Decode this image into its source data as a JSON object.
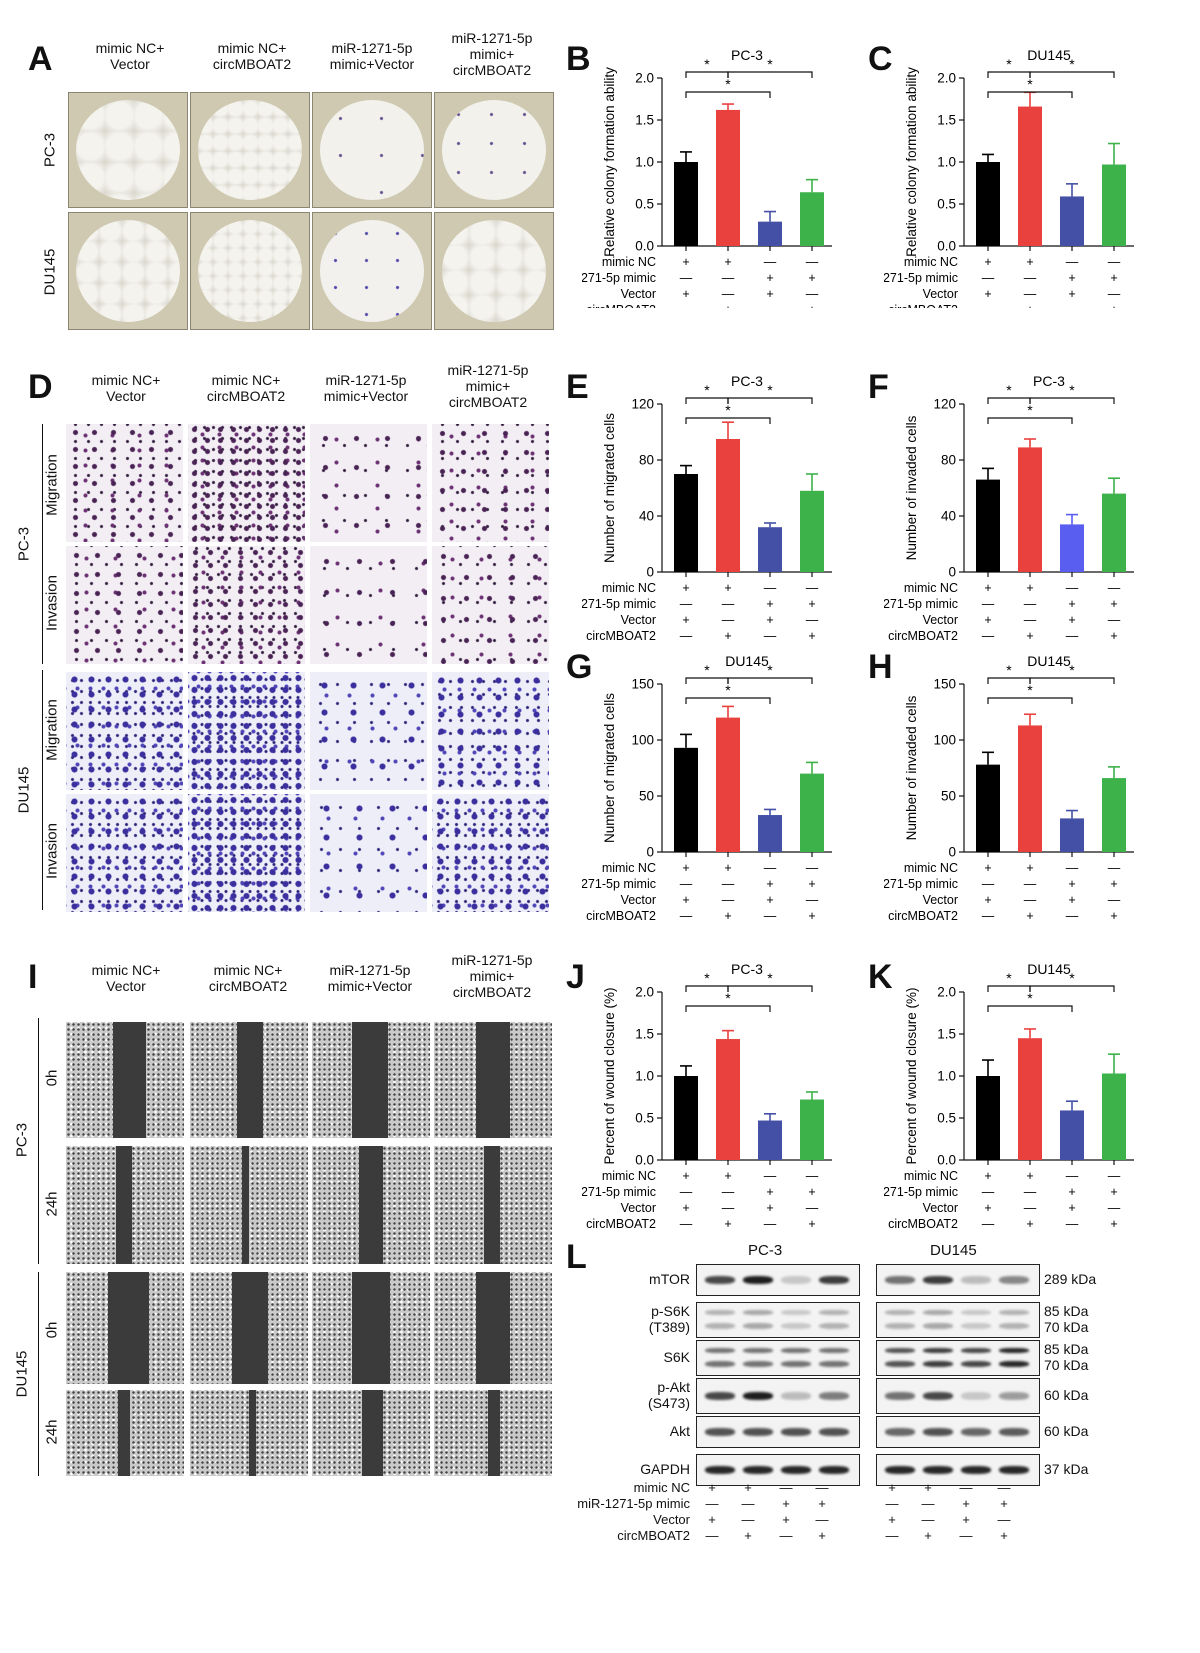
{
  "panels": {
    "A": "A",
    "B": "B",
    "C": "C",
    "D": "D",
    "E": "E",
    "F": "F",
    "G": "G",
    "H": "H",
    "I": "I",
    "J": "J",
    "K": "K",
    "L": "L"
  },
  "columns": [
    "mimic NC+\nVector",
    "mimic NC+\ncircMBOAT2",
    "miR-1271-5p\nmimic+Vector",
    "miR-1271-5p\nmimic+\ncircMBOAT2"
  ],
  "cell_lines": {
    "pc3": "PC-3",
    "du145": "DU145"
  },
  "assays": {
    "migration": "Migration",
    "invasion": "Invasion"
  },
  "timepoints": {
    "t0": "0h",
    "t24": "24h"
  },
  "colors": {
    "black": "#000000",
    "red": "#e8413e",
    "blue": "#4450a5",
    "green": "#3db24a",
    "blue_light": "#5a5ef0"
  },
  "group_labels": [
    "mimic NC",
    "miR-1271-5p mimic",
    "Vector",
    "circMBOAT2"
  ],
  "group_signs": [
    [
      "+",
      "+",
      "—",
      "—"
    ],
    [
      "—",
      "—",
      "+",
      "+"
    ],
    [
      "+",
      "—",
      "+",
      "—"
    ],
    [
      "—",
      "+",
      "—",
      "+"
    ]
  ],
  "significance": "*",
  "chart_data": [
    {
      "id": "B",
      "type": "bar",
      "title": "PC-3",
      "ylabel": "Relative colony formation ability",
      "ylim": [
        0,
        2.0
      ],
      "ticks": [
        "0.0",
        "0.5",
        "1.0",
        "1.5",
        "2.0"
      ],
      "tickvals": [
        0,
        0.5,
        1.0,
        1.5,
        2.0
      ],
      "values": [
        1.0,
        1.62,
        0.29,
        0.64
      ],
      "errors": [
        0.12,
        0.07,
        0.12,
        0.15
      ],
      "colors": [
        "#000000",
        "#e8413e",
        "#4450a5",
        "#3db24a"
      ]
    },
    {
      "id": "C",
      "type": "bar",
      "title": "DU145",
      "ylabel": "Relative colony formation ability",
      "ylim": [
        0,
        2.0
      ],
      "ticks": [
        "0.0",
        "0.5",
        "1.0",
        "1.5",
        "2.0"
      ],
      "tickvals": [
        0,
        0.5,
        1.0,
        1.5,
        2.0
      ],
      "values": [
        1.0,
        1.66,
        0.59,
        0.97
      ],
      "errors": [
        0.09,
        0.17,
        0.15,
        0.25
      ],
      "colors": [
        "#000000",
        "#e8413e",
        "#4450a5",
        "#3db24a"
      ]
    },
    {
      "id": "E",
      "type": "bar",
      "title": "PC-3",
      "ylabel": "Number of migrated cells",
      "ylim": [
        0,
        120
      ],
      "ticks": [
        "0",
        "40",
        "80",
        "120"
      ],
      "tickvals": [
        0,
        40,
        80,
        120
      ],
      "values": [
        70,
        95,
        32,
        58
      ],
      "errors": [
        6,
        12,
        3,
        12
      ],
      "colors": [
        "#000000",
        "#e8413e",
        "#4450a5",
        "#3db24a"
      ]
    },
    {
      "id": "F",
      "type": "bar",
      "title": "PC-3",
      "ylabel": "Number of invaded cells",
      "ylim": [
        0,
        120
      ],
      "ticks": [
        "0",
        "40",
        "80",
        "120"
      ],
      "tickvals": [
        0,
        40,
        80,
        120
      ],
      "values": [
        66,
        89,
        34,
        56
      ],
      "errors": [
        8,
        6,
        7,
        11
      ],
      "colors": [
        "#000000",
        "#e8413e",
        "#5a5ef0",
        "#3db24a"
      ]
    },
    {
      "id": "G",
      "type": "bar",
      "title": "DU145",
      "ylabel": "Number of migrated cells",
      "ylim": [
        0,
        150
      ],
      "ticks": [
        "0",
        "50",
        "100",
        "150"
      ],
      "tickvals": [
        0,
        50,
        100,
        150
      ],
      "values": [
        93,
        120,
        33,
        70
      ],
      "errors": [
        12,
        10,
        5,
        10
      ],
      "colors": [
        "#000000",
        "#e8413e",
        "#4450a5",
        "#3db24a"
      ]
    },
    {
      "id": "H",
      "type": "bar",
      "title": "DU145",
      "ylabel": "Number of invaded cells",
      "ylim": [
        0,
        150
      ],
      "ticks": [
        "0",
        "50",
        "100",
        "150"
      ],
      "tickvals": [
        0,
        50,
        100,
        150
      ],
      "values": [
        78,
        113,
        30,
        66
      ],
      "errors": [
        11,
        10,
        7,
        10
      ],
      "colors": [
        "#000000",
        "#e8413e",
        "#4450a5",
        "#3db24a"
      ]
    },
    {
      "id": "J",
      "type": "bar",
      "title": "PC-3",
      "ylabel": "Percent of wound closure (%)",
      "ylim": [
        0,
        2.0
      ],
      "ticks": [
        "0.0",
        "0.5",
        "1.0",
        "1.5",
        "2.0"
      ],
      "tickvals": [
        0,
        0.5,
        1.0,
        1.5,
        2.0
      ],
      "values": [
        1.0,
        1.44,
        0.47,
        0.72
      ],
      "errors": [
        0.12,
        0.1,
        0.08,
        0.09
      ],
      "colors": [
        "#000000",
        "#e8413e",
        "#4450a5",
        "#3db24a"
      ]
    },
    {
      "id": "K",
      "type": "bar",
      "title": "DU145",
      "ylabel": "Percent of wound closure (%)",
      "ylim": [
        0,
        2.0
      ],
      "ticks": [
        "0.0",
        "0.5",
        "1.0",
        "1.5",
        "2.0"
      ],
      "tickvals": [
        0,
        0.5,
        1.0,
        1.5,
        2.0
      ],
      "values": [
        1.0,
        1.45,
        0.59,
        1.03
      ],
      "errors": [
        0.19,
        0.11,
        0.11,
        0.23
      ],
      "colors": [
        "#000000",
        "#e8413e",
        "#4450a5",
        "#3db24a"
      ]
    }
  ],
  "western": {
    "pc3": "PC-3",
    "du145": "DU145",
    "proteins": [
      "mTOR",
      "p-S6K\n(T389)",
      "S6K",
      "p-Akt\n(S473)",
      "Akt",
      "GAPDH"
    ],
    "sizes": [
      "289 kDa",
      "85 kDa\n70 kDa",
      "85 kDa\n70 kDa",
      "60 kDa",
      "60 kDa",
      "37 kDa"
    ],
    "intensity_pc3": [
      [
        0.8,
        1.0,
        0.2,
        0.85
      ],
      [
        0.3,
        0.35,
        0.2,
        0.3
      ],
      [
        0.6,
        0.6,
        0.6,
        0.6
      ],
      [
        0.8,
        1.0,
        0.25,
        0.55
      ],
      [
        0.75,
        0.75,
        0.75,
        0.75
      ],
      [
        0.95,
        0.95,
        0.95,
        0.95
      ]
    ],
    "intensity_du145": [
      [
        0.6,
        0.85,
        0.25,
        0.5
      ],
      [
        0.3,
        0.35,
        0.2,
        0.3
      ],
      [
        0.75,
        0.85,
        0.8,
        0.95
      ],
      [
        0.6,
        0.8,
        0.2,
        0.4
      ],
      [
        0.65,
        0.75,
        0.65,
        0.7
      ],
      [
        0.95,
        0.95,
        0.95,
        0.95
      ]
    ]
  }
}
